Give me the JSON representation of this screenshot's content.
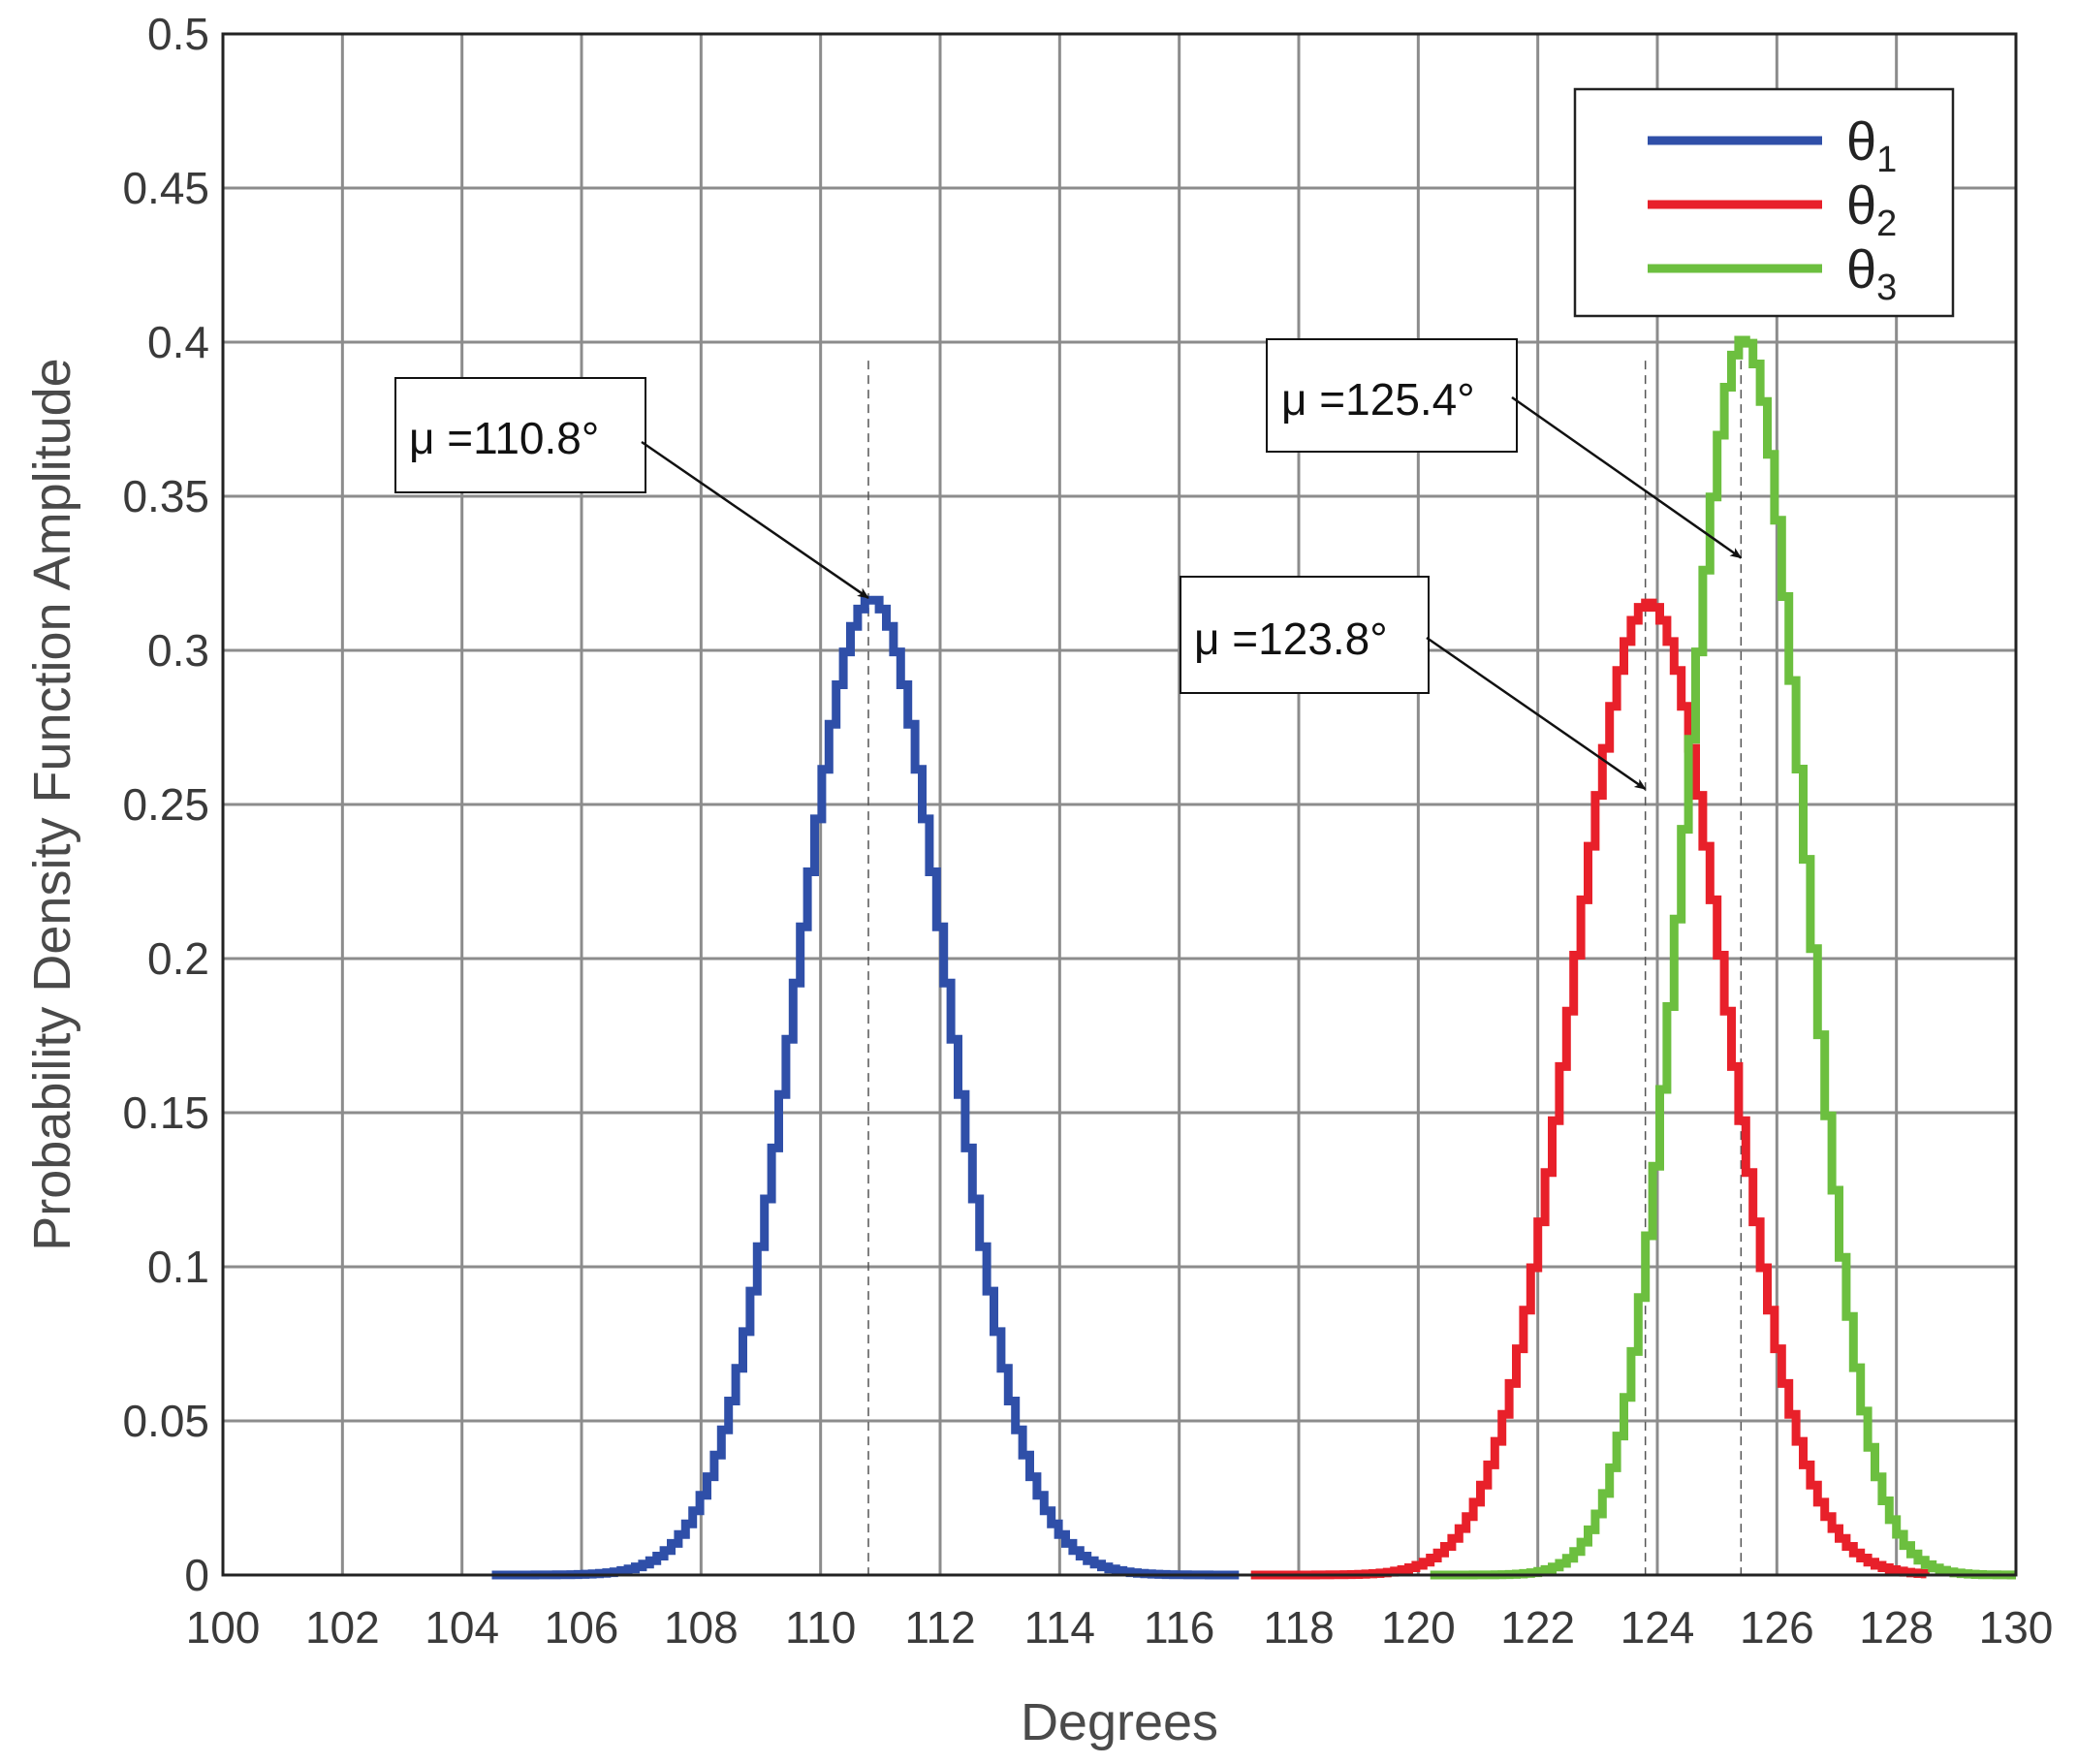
{
  "chart_data": {
    "type": "line",
    "title": "",
    "xlabel": "Degrees",
    "ylabel": "Probability Density Function Amplitude",
    "xlim": [
      100,
      130
    ],
    "ylim": [
      0,
      0.5
    ],
    "xticks": [
      "100",
      "102",
      "104",
      "106",
      "108",
      "110",
      "112",
      "114",
      "116",
      "118",
      "120",
      "122",
      "124",
      "126",
      "128",
      "130"
    ],
    "yticks": [
      "0",
      "0.05",
      "0.1",
      "0.15",
      "0.2",
      "0.25",
      "0.3",
      "0.35",
      "0.4",
      "0.45",
      "0.5"
    ],
    "grid": true,
    "legend_position": "top-right",
    "series": [
      {
        "name": "θ1",
        "name_base": "θ",
        "name_sub": "1",
        "color": "#2f4fa8",
        "mu": 110.8,
        "sigma": 1.26,
        "x_range": [
          104.5,
          117
        ]
      },
      {
        "name": "θ2",
        "name_base": "θ",
        "name_sub": "2",
        "color": "#e8202a",
        "mu": 123.8,
        "sigma": 1.265,
        "x_range": [
          117.2,
          128.5
        ]
      },
      {
        "name": "θ3",
        "name_base": "θ",
        "name_sub": "3",
        "color": "#6cbf3f",
        "mu": 125.4,
        "sigma": 0.995,
        "x_range": [
          120.2,
          130
        ]
      }
    ],
    "mean_lines": [
      110.8,
      123.8,
      125.4
    ],
    "annotations": [
      {
        "text": "μ =110.8°",
        "target_x": 110.8,
        "target_y": 0.317
      },
      {
        "text": "μ =123.8°",
        "target_x": 123.8,
        "target_y": 0.255
      },
      {
        "text": "μ =125.4°",
        "target_x": 125.4,
        "target_y": 0.33
      }
    ]
  }
}
